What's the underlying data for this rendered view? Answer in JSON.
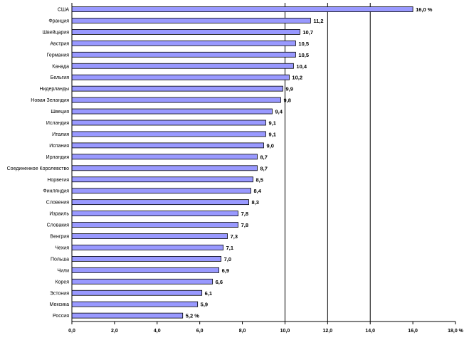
{
  "chart_data": {
    "type": "bar",
    "orientation": "horizontal",
    "categories": [
      "США",
      "Франция",
      "Швейцария",
      "Австрия",
      "Германия",
      "Канада",
      "Бельгия",
      "Нидерланды",
      "Новая Зеландия",
      "Швеция",
      "Исландия",
      "Италия",
      "Испания",
      "Ирландия",
      "Соединенное Королевство",
      "Норвегия",
      "Финляндия",
      "Словения",
      "Израиль",
      "Словакия",
      "Венгрия",
      "Чехия",
      "Польша",
      "Чили",
      "Корея",
      "Эстония",
      "Мексика",
      "Россия"
    ],
    "value_labels": [
      "16,0 %",
      "11,2",
      "10,7",
      "10,5",
      "10,5",
      "10,4",
      "10,2",
      "9,9",
      "9,8",
      "9,4",
      "9,1",
      "9,1",
      "9,0",
      "8,7",
      "8,7",
      "8,5",
      "8,4",
      "8,3",
      "7,8",
      "7,8",
      "7,3",
      "7,1",
      "7,0",
      "6,9",
      "6,6",
      "6,1",
      "5,9",
      "5,2 %"
    ],
    "values": [
      16.0,
      11.2,
      10.7,
      10.5,
      10.5,
      10.4,
      10.2,
      9.9,
      9.8,
      9.4,
      9.1,
      9.1,
      9.0,
      8.7,
      8.7,
      8.5,
      8.4,
      8.3,
      7.8,
      7.8,
      7.3,
      7.1,
      7.0,
      6.9,
      6.6,
      6.1,
      5.9,
      5.2
    ],
    "xlim": [
      0,
      18
    ],
    "x_ticks": [
      0,
      2,
      4,
      6,
      8,
      10,
      12,
      14,
      16,
      18
    ],
    "x_tick_labels": [
      "0,0",
      "2,0",
      "4,0",
      "6,0",
      "8,0",
      "10,0",
      "12,0",
      "14,0",
      "16,0",
      "18,0 %"
    ],
    "gridlines": [
      10,
      12,
      14
    ],
    "grid": true,
    "legend": false,
    "colors": {
      "bar_fill": "#9999ff",
      "bar_stroke": "#000000",
      "grid": "#000000",
      "background": "#ffffff"
    }
  }
}
